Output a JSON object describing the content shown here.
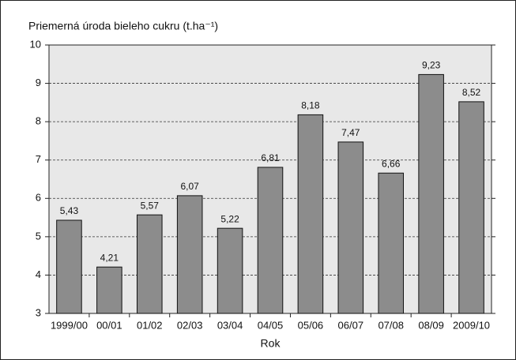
{
  "chart_data": {
    "type": "bar",
    "title": "Priemerná úroda bieleho cukru (t.ha⁻¹)",
    "x_label": "Rok",
    "categories": [
      "1999/00",
      "00/01",
      "01/02",
      "02/03",
      "03/04",
      "04/05",
      "05/06",
      "06/07",
      "07/08",
      "08/09",
      "2009/10"
    ],
    "values": [
      5.43,
      4.21,
      5.57,
      6.07,
      5.22,
      6.81,
      8.18,
      7.47,
      6.66,
      9.23,
      8.52
    ],
    "value_labels": [
      "5,43",
      "4,21",
      "5,57",
      "6,07",
      "5,22",
      "6,81",
      "8,18",
      "7,47",
      "6,66",
      "9,23",
      "8,52"
    ],
    "color": "#8c8c8c",
    "ylim": [
      3,
      10
    ],
    "yticks": [
      3,
      4,
      5,
      6,
      7,
      8,
      9,
      10
    ],
    "grid": true
  }
}
